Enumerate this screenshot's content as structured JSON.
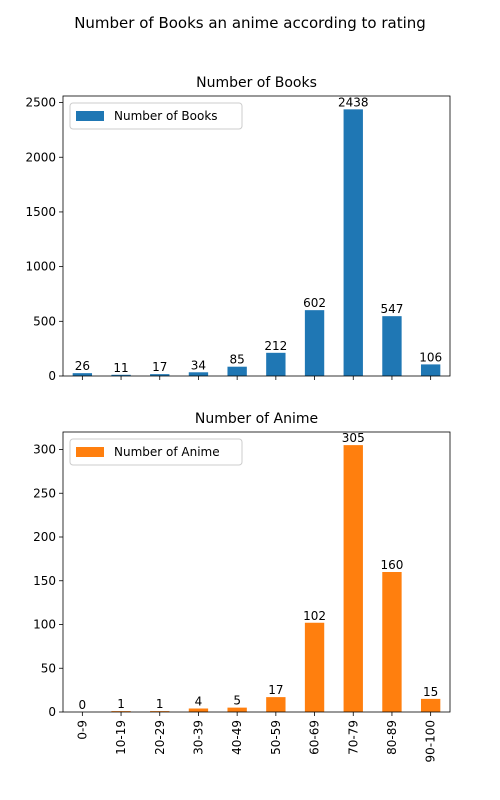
{
  "figure": {
    "title": "Number of Books an anime according to rating"
  },
  "chart_data": [
    {
      "type": "bar",
      "title": "Number of Books",
      "xlabel": "",
      "ylabel": "",
      "categories": [
        "0-9",
        "10-19",
        "20-29",
        "30-39",
        "40-49",
        "50-59",
        "60-69",
        "70-79",
        "80-89",
        "90-100"
      ],
      "series": [
        {
          "name": "Number of Books",
          "values": [
            26,
            11,
            17,
            34,
            85,
            212,
            602,
            2438,
            547,
            106
          ],
          "color": "#1f77b4"
        }
      ],
      "data_labels": [
        "26",
        "11",
        "17",
        "34",
        "85",
        "212",
        "602",
        "2438",
        "547",
        "106"
      ],
      "ylim": [
        0,
        2560
      ],
      "yticks": [
        0,
        500,
        1000,
        1500,
        2000,
        2500
      ],
      "show_xtick_labels": false,
      "grid": false,
      "legend": "top-left"
    },
    {
      "type": "bar",
      "title": "Number of Anime",
      "xlabel": "",
      "ylabel": "",
      "categories": [
        "0-9",
        "10-19",
        "20-29",
        "30-39",
        "40-49",
        "50-59",
        "60-69",
        "70-79",
        "80-89",
        "90-100"
      ],
      "series": [
        {
          "name": "Number of Anime",
          "values": [
            0,
            1,
            1,
            4,
            5,
            17,
            102,
            305,
            160,
            15
          ],
          "color": "#ff7f0e"
        }
      ],
      "data_labels": [
        "0",
        "1",
        "1",
        "4",
        "5",
        "17",
        "102",
        "305",
        "160",
        "15"
      ],
      "ylim": [
        0,
        320
      ],
      "yticks": [
        0,
        50,
        100,
        150,
        200,
        250,
        300
      ],
      "show_xtick_labels": true,
      "grid": false,
      "legend": "top-left"
    }
  ]
}
